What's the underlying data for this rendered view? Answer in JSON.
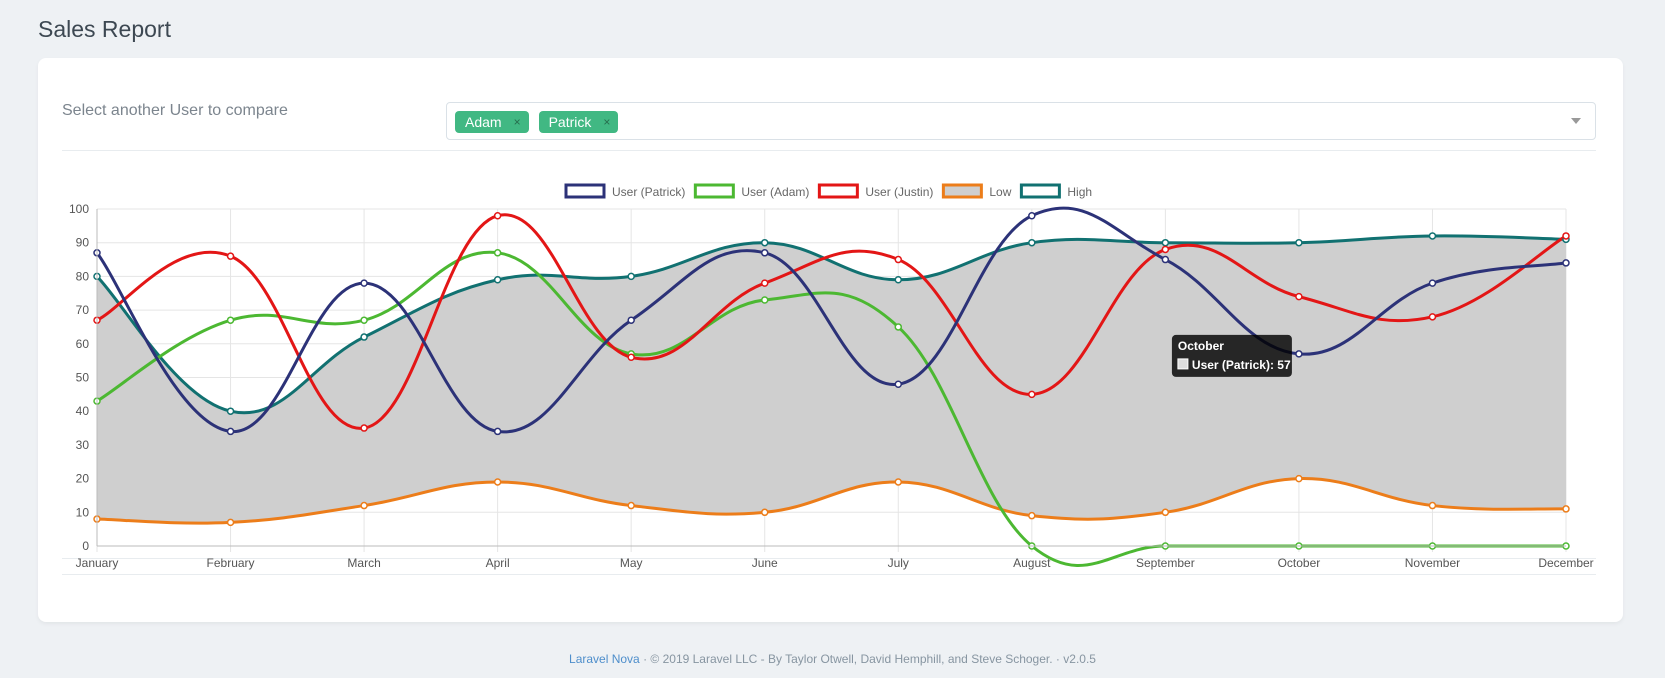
{
  "page": {
    "title": "Sales Report"
  },
  "compare": {
    "label": "Select another User to compare",
    "tags": [
      {
        "label": "Adam",
        "remove": "×"
      },
      {
        "label": "Patrick",
        "remove": "×"
      }
    ]
  },
  "footer": {
    "brand": "Laravel Nova",
    "sep1": "·",
    "copyright": "© 2019 Laravel LLC - By Taylor Otwell, David Hemphill, and Steve Schoger.",
    "sep2": "·",
    "version": "v2.0.5"
  },
  "tooltip": {
    "title": "October",
    "body": "User (Patrick): 57"
  },
  "chart_data": {
    "type": "line",
    "categories": [
      "January",
      "February",
      "March",
      "April",
      "May",
      "June",
      "July",
      "August",
      "September",
      "October",
      "November",
      "December"
    ],
    "ylim": [
      0,
      100
    ],
    "yticks": [
      0,
      10,
      20,
      30,
      40,
      50,
      60,
      70,
      80,
      90,
      100
    ],
    "grid": true,
    "legend_position": "top",
    "series": [
      {
        "name": "User (Patrick)",
        "color": "#2c3278",
        "values": [
          87,
          34,
          78,
          34,
          67,
          87,
          48,
          98,
          85,
          57,
          78,
          84
        ]
      },
      {
        "name": "User (Adam)",
        "color": "#4cb832",
        "values": [
          43,
          67,
          67,
          87,
          57,
          73,
          65,
          0,
          0,
          0,
          0,
          0
        ]
      },
      {
        "name": "User (Justin)",
        "color": "#e31616",
        "values": [
          67,
          86,
          35,
          98,
          56,
          78,
          85,
          45,
          88,
          74,
          68,
          92
        ]
      },
      {
        "name": "Low",
        "color": "#ec7d1a",
        "fill": "#cfcfcf",
        "values": [
          8,
          7,
          12,
          19,
          12,
          10,
          19,
          9,
          10,
          20,
          12,
          11
        ]
      },
      {
        "name": "High",
        "color": "#117171",
        "values": [
          80,
          40,
          62,
          79,
          80,
          90,
          79,
          90,
          90,
          90,
          92,
          91
        ]
      }
    ]
  }
}
